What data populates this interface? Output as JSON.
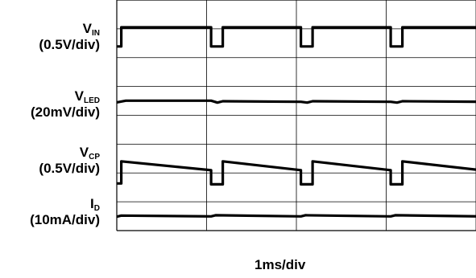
{
  "chart_data": {
    "type": "line",
    "timebase": "1ms/div",
    "divisions": {
      "horizontal": 4,
      "vertical": 8
    },
    "grid": true,
    "channels": [
      {
        "key": "vin",
        "name": "V",
        "subscript": "IN",
        "scale": "(0.5V/div)",
        "color": "#000000",
        "points": [
          [
            0,
            0.3
          ],
          [
            0.05,
            0.3
          ],
          [
            0.05,
            2.0
          ],
          [
            1.05,
            2.0
          ],
          [
            1.05,
            0.3
          ],
          [
            1.18,
            0.3
          ],
          [
            1.18,
            2.0
          ],
          [
            2.05,
            2.0
          ],
          [
            2.05,
            0.3
          ],
          [
            2.18,
            0.3
          ],
          [
            2.18,
            2.0
          ],
          [
            3.05,
            2.0
          ],
          [
            3.05,
            0.3
          ],
          [
            3.18,
            0.3
          ],
          [
            3.18,
            2.0
          ],
          [
            4.05,
            2.0
          ],
          [
            4.05,
            0.3
          ],
          [
            4.18,
            0.3
          ],
          [
            4.18,
            2.0
          ],
          [
            4.25,
            2.0
          ]
        ]
      },
      {
        "key": "vled",
        "name": "V",
        "subscript": "LED",
        "scale": "(20mV/div)",
        "color": "#000000",
        "points": [
          [
            0,
            -0.1
          ],
          [
            0.1,
            0.05
          ],
          [
            1.05,
            0.05
          ],
          [
            1.12,
            -0.12
          ],
          [
            1.18,
            0.0
          ],
          [
            2.05,
            -0.05
          ],
          [
            2.12,
            -0.12
          ],
          [
            2.18,
            0.0
          ],
          [
            3.05,
            -0.05
          ],
          [
            3.12,
            -0.12
          ],
          [
            3.18,
            0.0
          ],
          [
            4.05,
            -0.05
          ],
          [
            4.12,
            -0.12
          ],
          [
            4.18,
            0.0
          ],
          [
            4.25,
            0.0
          ]
        ]
      },
      {
        "key": "vcp",
        "name": "V",
        "subscript": "CP",
        "scale": "(0.5V/div)",
        "color": "#000000",
        "points": [
          [
            0,
            0.35
          ],
          [
            0.05,
            0.35
          ],
          [
            0.05,
            1.6
          ],
          [
            1.05,
            1.1
          ],
          [
            1.05,
            0.3
          ],
          [
            1.18,
            0.3
          ],
          [
            1.18,
            1.6
          ],
          [
            2.05,
            1.1
          ],
          [
            2.05,
            0.3
          ],
          [
            2.18,
            0.3
          ],
          [
            2.18,
            1.6
          ],
          [
            3.05,
            1.1
          ],
          [
            3.05,
            0.3
          ],
          [
            3.18,
            0.3
          ],
          [
            3.18,
            1.6
          ],
          [
            4.05,
            1.1
          ],
          [
            4.05,
            0.3
          ],
          [
            4.18,
            0.3
          ],
          [
            4.18,
            1.6
          ],
          [
            4.25,
            1.55
          ]
        ]
      },
      {
        "key": "id",
        "name": "I",
        "subscript": "D",
        "scale": "(10mA/div)",
        "color": "#000000",
        "points": [
          [
            0,
            -0.05
          ],
          [
            0.05,
            0.05
          ],
          [
            1.05,
            -0.02
          ],
          [
            1.1,
            0.08
          ],
          [
            2.05,
            -0.02
          ],
          [
            2.1,
            0.08
          ],
          [
            3.05,
            -0.02
          ],
          [
            3.1,
            0.08
          ],
          [
            4.05,
            -0.02
          ],
          [
            4.1,
            0.08
          ],
          [
            4.25,
            0.0
          ]
        ]
      }
    ]
  }
}
